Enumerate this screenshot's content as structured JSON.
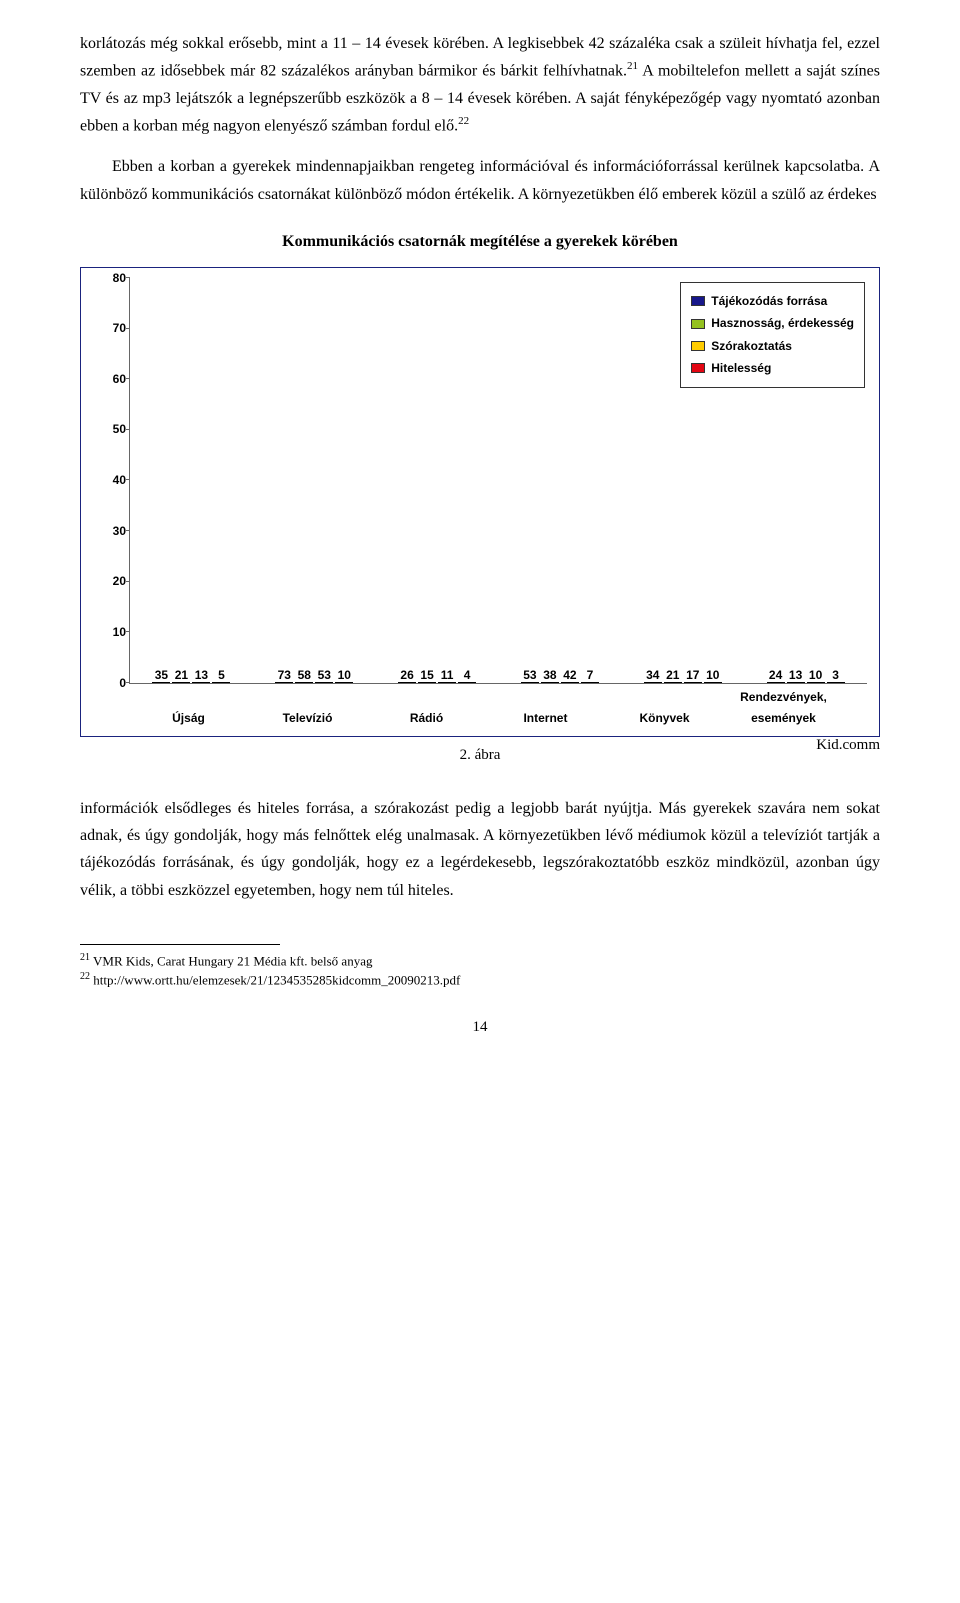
{
  "text": {
    "para1": "korlátozás még sokkal erősebb, mint a 11 – 14 évesek körében. A legkisebbek 42 százaléka csak a szüleit hívhatja fel, ezzel szemben az idősebbek már 82 százalékos arányban bármikor és bárkit felhívhatnak.",
    "sup1": "21",
    "para1b": " A mobiltelefon mellett a saját színes TV és az mp3 lejátszók a legnépszerűbb eszközök a 8 – 14 évesek körében. A saját fényképezőgép vagy nyomtató azonban ebben a korban még nagyon elenyésző számban fordul elő.",
    "sup2": "22",
    "para2": "Ebben a korban a gyerekek mindennapjaikban rengeteg információval és információforrással kerülnek kapcsolatba. A különböző kommunikációs csatornákat különböző módon értékelik. A környezetükben élő emberek közül a szülő az érdekes",
    "chart_title": "Kommunikációs csatornák megítélése a gyerekek körében",
    "fig_label": "2. ábra",
    "source": "Kid.comm",
    "para3": "információk elsődleges és hiteles forrása, a szórakozást pedig a legjobb barát nyújtja. Más gyerekek szavára nem sokat adnak, és úgy gondolják, hogy más felnőttek elég unalmasak. A környezetükben lévő médiumok közül a televíziót tartják a tájékozódás forrásának, és úgy gondolják, hogy ez a legérdekesebb, legszórakoztatóbb eszköz mindközül, azonban úgy vélik, a többi eszközzel egyetemben, hogy nem túl hiteles.",
    "fn1": " VMR Kids, Carat Hungary 21 Média kft. belső anyag",
    "fn2": " http://www.ortt.hu/elemzesek/21/1234535285kidcomm_20090213.pdf",
    "page": "14"
  },
  "chart": {
    "ymax": 80,
    "yticks": [
      0,
      10,
      20,
      30,
      40,
      50,
      60,
      70,
      80
    ],
    "colors": {
      "s1": "#17178a",
      "s2": "#94c11f",
      "s3": "#ffcc00",
      "s4": "#e30613"
    },
    "legend": [
      {
        "label": "Tájékozódás forrása",
        "color": "#17178a"
      },
      {
        "label": "Hasznosság, érdekesség",
        "color": "#94c11f"
      },
      {
        "label": "Szórakoztatás",
        "color": "#ffcc00"
      },
      {
        "label": "Hitelesség",
        "color": "#e30613"
      }
    ],
    "categories": [
      {
        "name": "Újság",
        "values": [
          35,
          21,
          13,
          5
        ]
      },
      {
        "name": "Televízió",
        "values": [
          73,
          58,
          53,
          10
        ]
      },
      {
        "name": "Rádió",
        "values": [
          26,
          15,
          11,
          4
        ]
      },
      {
        "name": "Internet",
        "values": [
          53,
          38,
          42,
          7
        ]
      },
      {
        "name": "Könyvek",
        "values": [
          34,
          21,
          17,
          10
        ]
      },
      {
        "name": "Rendezvények,",
        "name2": "események",
        "values": [
          24,
          13,
          10,
          3
        ]
      }
    ]
  }
}
